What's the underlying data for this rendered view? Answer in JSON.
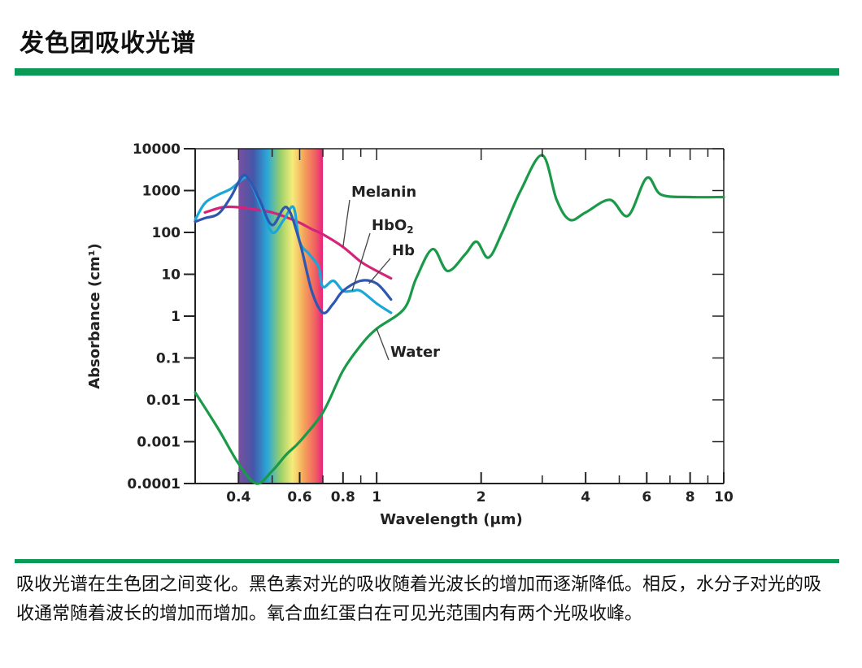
{
  "page": {
    "title": "发色团吸收光谱",
    "caption": "吸收光谱在生色团之间变化。黑色素对光的吸收随着光波长的增加而逐渐降低。相反，水分子对光的吸收通常随着波长的增加而增加。氧合血红蛋白在可见光范围内有两个光吸收峰。"
  },
  "chart_data": {
    "type": "line",
    "xlabel": "Wavelength (μm)",
    "ylabel": "Absorbance (cm¹)",
    "x_scale": "log",
    "y_scale": "log",
    "xlim": [
      0.3,
      10
    ],
    "ylim": [
      0.0001,
      10000
    ],
    "x_ticks": [
      {
        "value": 0.4,
        "label": "0.4"
      },
      {
        "value": 0.6,
        "label": "0.6"
      },
      {
        "value": 0.8,
        "label": "0.8"
      },
      {
        "value": 1,
        "label": "1"
      },
      {
        "value": 2,
        "label": "2"
      },
      {
        "value": 4,
        "label": "4"
      },
      {
        "value": 6,
        "label": "6"
      },
      {
        "value": 8,
        "label": "8"
      },
      {
        "value": 10,
        "label": "10"
      }
    ],
    "y_ticks": [
      {
        "value": 10000,
        "label": "10000"
      },
      {
        "value": 1000,
        "label": "1000"
      },
      {
        "value": 100,
        "label": "100"
      },
      {
        "value": 10,
        "label": "10"
      },
      {
        "value": 1,
        "label": "1"
      },
      {
        "value": 0.1,
        "label": "0.1"
      },
      {
        "value": 0.01,
        "label": "0.01"
      },
      {
        "value": 0.001,
        "label": "0.001"
      },
      {
        "value": 0.0001,
        "label": "0.0001"
      }
    ],
    "visible_band": {
      "start": 0.4,
      "end": 0.7
    },
    "series": [
      {
        "name": "Melanin",
        "color": "#d6237a",
        "x": [
          0.32,
          0.36,
          0.4,
          0.45,
          0.5,
          0.55,
          0.6,
          0.65,
          0.7,
          0.8,
          0.9,
          1.0,
          1.1
        ],
        "y": [
          300,
          400,
          400,
          350,
          300,
          230,
          170,
          120,
          90,
          45,
          20,
          12,
          8
        ]
      },
      {
        "name": "HbO2",
        "color": "#1aa6d9",
        "x": [
          0.3,
          0.32,
          0.35,
          0.38,
          0.415,
          0.43,
          0.46,
          0.5,
          0.54,
          0.576,
          0.6,
          0.64,
          0.68,
          0.7,
          0.75,
          0.8,
          0.85,
          0.9,
          1.0,
          1.1
        ],
        "y": [
          200,
          500,
          800,
          1100,
          2000,
          1800,
          500,
          100,
          200,
          400,
          60,
          30,
          15,
          5,
          7,
          4,
          4,
          4,
          2,
          1.2
        ]
      },
      {
        "name": "Hb",
        "color": "#2f56b0",
        "x": [
          0.3,
          0.32,
          0.35,
          0.38,
          0.41,
          0.43,
          0.46,
          0.5,
          0.55,
          0.6,
          0.65,
          0.7,
          0.75,
          0.8,
          0.9,
          1.0,
          1.1
        ],
        "y": [
          180,
          220,
          280,
          700,
          2200,
          1800,
          600,
          150,
          400,
          60,
          4,
          1.2,
          2,
          4,
          7,
          6,
          2.5
        ]
      },
      {
        "name": "Water",
        "color": "#1a9a48",
        "x": [
          0.3,
          0.35,
          0.4,
          0.45,
          0.5,
          0.55,
          0.6,
          0.7,
          0.8,
          0.9,
          1.0,
          1.2,
          1.3,
          1.45,
          1.6,
          1.8,
          1.94,
          2.1,
          2.3,
          2.6,
          3.0,
          3.3,
          3.6,
          4.0,
          4.7,
          5.3,
          6.0,
          6.6,
          8.0,
          10.0
        ],
        "y": [
          0.015,
          0.002,
          0.0003,
          0.0001,
          0.0002,
          0.0005,
          0.001,
          0.005,
          0.05,
          0.2,
          0.5,
          1.5,
          8,
          40,
          12,
          30,
          60,
          25,
          100,
          1000,
          7000,
          600,
          200,
          300,
          600,
          250,
          2000,
          800,
          700,
          700
        ]
      }
    ],
    "annotations": [
      {
        "text": "Melanin",
        "series": "Melanin"
      },
      {
        "text": "HbO",
        "sub": "2",
        "series": "HbO2"
      },
      {
        "text": "Hb",
        "series": "Hb"
      },
      {
        "text": "Water",
        "series": "Water"
      }
    ]
  }
}
